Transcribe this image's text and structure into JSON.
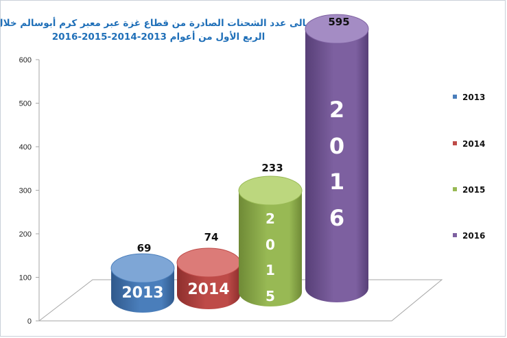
{
  "chart_data": {
    "type": "bar",
    "title_line1": "إجمالى عدد الشحنات الصادرة من قطاع غزة عبر معبر كرم أبوسالم خلال",
    "title_line2": "الربع  الأول من أعوام 2013-2014-2015-2016",
    "categories": [
      "2013",
      "2014",
      "2015",
      "2016"
    ],
    "values": [
      69,
      74,
      233,
      595
    ],
    "data_labels": [
      "69",
      "74",
      "233",
      "595"
    ],
    "bar_text": [
      "2013",
      "2014",
      "2\n0\n1\n5",
      "2\n0\n1\n6"
    ],
    "colors": [
      "#4a7ebb",
      "#be4b48",
      "#98b954",
      "#7d60a0"
    ],
    "dark_colors": [
      "#30598c",
      "#8e2f2d",
      "#6f8a36",
      "#573f77"
    ],
    "light_colors": [
      "#7ea6d6",
      "#dc7b78",
      "#bcd77e",
      "#a48cc4"
    ],
    "ylim": [
      0,
      600
    ],
    "yticks": [
      "0",
      "100",
      "200",
      "300",
      "400",
      "500",
      "600"
    ],
    "legend": [
      "2013",
      "2014",
      "2015",
      "2016"
    ],
    "legend_position": "right",
    "grid": false
  }
}
